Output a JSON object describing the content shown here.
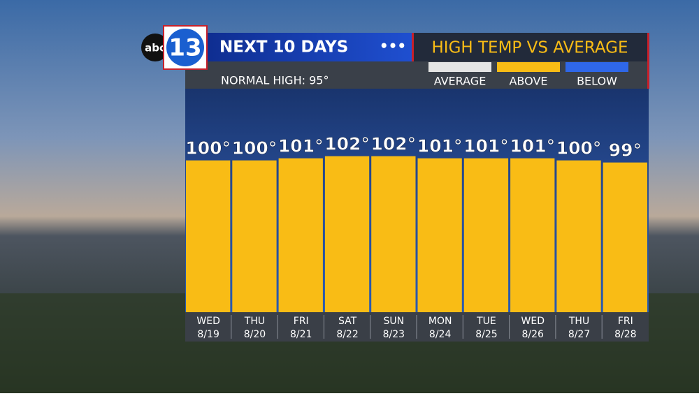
{
  "logo": {
    "small": "abc",
    "big": "13"
  },
  "chart_data": {
    "type": "bar",
    "title": "NEXT 10 DAYS",
    "subtitle": "HIGH TEMP VS AVERAGE",
    "note": "NORMAL HIGH: 95°",
    "legend": [
      {
        "name": "AVERAGE",
        "color": "#e4e4e4"
      },
      {
        "name": "ABOVE",
        "color": "#f9bc15"
      },
      {
        "name": "BELOW",
        "color": "#2f67e8"
      }
    ],
    "categories": [
      "WED",
      "THU",
      "FRI",
      "SAT",
      "SUN",
      "MON",
      "TUE",
      "WED",
      "THU",
      "FRI"
    ],
    "dates": [
      "8/19",
      "8/20",
      "8/21",
      "8/22",
      "8/23",
      "8/24",
      "8/25",
      "8/26",
      "8/27",
      "8/28"
    ],
    "values": [
      100,
      100,
      101,
      102,
      102,
      101,
      101,
      101,
      100,
      99
    ],
    "value_labels": [
      "100°",
      "100°",
      "101°",
      "102°",
      "102°",
      "101°",
      "101°",
      "101°",
      "100°",
      "99°"
    ],
    "color": "#f9bc15",
    "ylim": [
      28,
      134
    ]
  }
}
